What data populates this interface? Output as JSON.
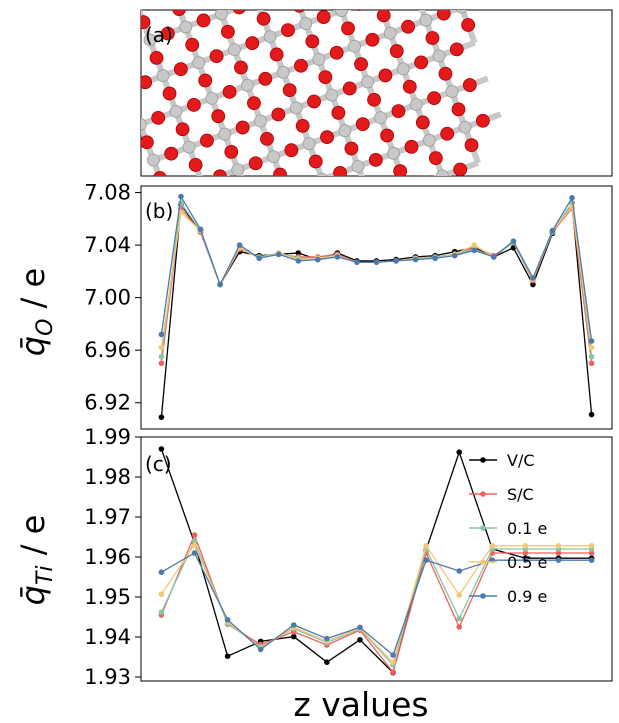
{
  "panel_a": {
    "label": "(a)",
    "atom_colors": {
      "oxygen": "#e31a1c",
      "titanium": "#c8c8c8"
    }
  },
  "chart_data": [
    {
      "type": "line",
      "panel_label": "(b)",
      "ylabel_symbol": "q̄",
      "ylabel_subscript": "O",
      "ylabel_unit": " / e",
      "xlabel": "",
      "ylim": [
        6.9,
        7.085
      ],
      "yticks": [
        6.92,
        6.96,
        7.0,
        7.04,
        7.08
      ],
      "ytick_labels": [
        "6.92",
        "6.96",
        "7.00",
        "7.04",
        "7.08"
      ],
      "x_range": [
        0,
        30
      ],
      "x": [
        1,
        2,
        3,
        4,
        5,
        6,
        7,
        8,
        9,
        10,
        11,
        12,
        13,
        14,
        15,
        16,
        17,
        18,
        19,
        20,
        21,
        22,
        23
      ],
      "series": [
        {
          "name": "V/C",
          "color": "#000000",
          "values": [
            6.909,
            7.071,
            7.05,
            7.01,
            7.035,
            7.032,
            7.033,
            7.034,
            7.029,
            7.034,
            7.028,
            7.028,
            7.029,
            7.031,
            7.032,
            7.035,
            7.038,
            7.031,
            7.038,
            7.01,
            7.049,
            7.072,
            6.911
          ]
        },
        {
          "name": "S/C",
          "color": "#f1605d",
          "values": [
            6.95,
            7.068,
            7.05,
            7.01,
            7.037,
            7.031,
            7.033,
            7.031,
            7.031,
            7.033,
            7.027,
            7.027,
            7.028,
            7.03,
            7.031,
            7.032,
            7.039,
            7.032,
            7.042,
            7.013,
            7.05,
            7.068,
            6.95
          ]
        },
        {
          "name": "0.1 e",
          "color": "#86c6a2",
          "values": [
            6.955,
            7.072,
            7.051,
            7.01,
            7.038,
            7.031,
            7.034,
            7.03,
            7.03,
            7.032,
            7.027,
            7.027,
            7.028,
            7.03,
            7.031,
            7.033,
            7.037,
            7.031,
            7.042,
            7.014,
            7.05,
            7.072,
            6.955
          ]
        },
        {
          "name": "0.5 e",
          "color": "#f5c878",
          "values": [
            6.962,
            7.065,
            7.051,
            7.01,
            7.038,
            7.03,
            7.034,
            7.029,
            7.03,
            7.032,
            7.027,
            7.027,
            7.028,
            7.03,
            7.03,
            7.033,
            7.04,
            7.031,
            7.043,
            7.014,
            7.051,
            7.069,
            6.962
          ]
        },
        {
          "name": "0.9 e",
          "color": "#4a7aae",
          "values": [
            6.972,
            7.077,
            7.052,
            7.01,
            7.04,
            7.03,
            7.033,
            7.028,
            7.029,
            7.031,
            7.027,
            7.027,
            7.028,
            7.029,
            7.03,
            7.032,
            7.036,
            7.031,
            7.043,
            7.015,
            7.051,
            7.076,
            6.967
          ]
        }
      ]
    },
    {
      "type": "line",
      "panel_label": "(c)",
      "ylabel_symbol": "q̄",
      "ylabel_subscript": "Ti",
      "ylabel_unit": " / e",
      "xlabel": "z values",
      "ylim": [
        1.929,
        1.99
      ],
      "yticks": [
        1.93,
        1.94,
        1.95,
        1.96,
        1.97,
        1.98,
        1.99
      ],
      "ytick_labels": [
        "1.93",
        "1.94",
        "1.95",
        "1.96",
        "1.97",
        "1.98",
        "1.99"
      ],
      "x_range": [
        0,
        30
      ],
      "x": [
        1,
        2,
        3,
        4,
        5,
        6,
        7,
        8,
        9,
        10,
        11,
        12,
        13,
        14
      ],
      "series": [
        {
          "name": "V/C",
          "color": "#000000",
          "values": [
            1.987,
            1.9635,
            1.9352,
            1.9389,
            1.9401,
            1.9337,
            1.9393,
            1.9311,
            1.9618,
            1.9862,
            1.962,
            1.9597,
            1.9597,
            1.9597
          ]
        },
        {
          "name": "S/C",
          "color": "#f1605d",
          "values": [
            1.9455,
            1.9655,
            1.9432,
            1.9381,
            1.9413,
            1.938,
            1.9417,
            1.9312,
            1.961,
            1.9425,
            1.961,
            1.961,
            1.961,
            1.961
          ]
        },
        {
          "name": "0.1 e",
          "color": "#86c6a2",
          "values": [
            1.9462,
            1.964,
            1.9434,
            1.9375,
            1.9421,
            1.9386,
            1.942,
            1.933,
            1.962,
            1.9446,
            1.962,
            1.962,
            1.962,
            1.962
          ]
        },
        {
          "name": "0.5 e",
          "color": "#f5c878",
          "values": [
            1.9507,
            1.963,
            1.9438,
            1.9372,
            1.9424,
            1.939,
            1.9422,
            1.9337,
            1.9628,
            1.9505,
            1.9628,
            1.9628,
            1.9628,
            1.9628
          ]
        },
        {
          "name": "0.9 e",
          "color": "#4a7aae",
          "values": [
            1.9562,
            1.961,
            1.9443,
            1.9369,
            1.943,
            1.9396,
            1.9424,
            1.9355,
            1.9592,
            1.9565,
            1.9592,
            1.9592,
            1.9592,
            1.9592
          ]
        }
      ],
      "legend": {
        "placement": "top-right",
        "entries": [
          "V/C",
          "S/C",
          "0.1 e",
          "0.5 e",
          "0.9 e"
        ]
      }
    }
  ]
}
